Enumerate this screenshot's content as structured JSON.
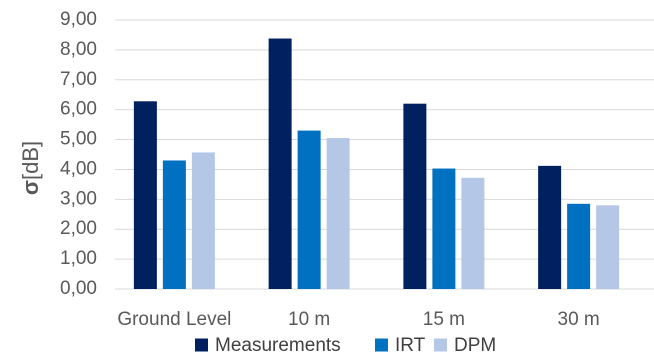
{
  "chart_data": {
    "type": "bar",
    "title": "",
    "xlabel": "",
    "ylabel": {
      "symbol": "σ",
      "unit": "[dB]"
    },
    "ylim": [
      0,
      9
    ],
    "ytick_step": 1,
    "yticks": [
      "0,00",
      "1,00",
      "2,00",
      "3,00",
      "4,00",
      "5,00",
      "6,00",
      "7,00",
      "8,00",
      "9,00"
    ],
    "grid": true,
    "legend_position": "bottom",
    "categories": [
      "Ground Level",
      "10 m",
      "15 m",
      "30 m"
    ],
    "series": [
      {
        "name": "Measurements",
        "color": "#002060",
        "values": [
          6.28,
          8.38,
          6.2,
          4.12
        ]
      },
      {
        "name": "IRT",
        "color": "#0070C0",
        "values": [
          4.3,
          5.3,
          4.03,
          2.85
        ]
      },
      {
        "name": "DPM",
        "color": "#B4C7E7",
        "values": [
          4.57,
          5.05,
          3.72,
          2.8
        ]
      }
    ]
  }
}
